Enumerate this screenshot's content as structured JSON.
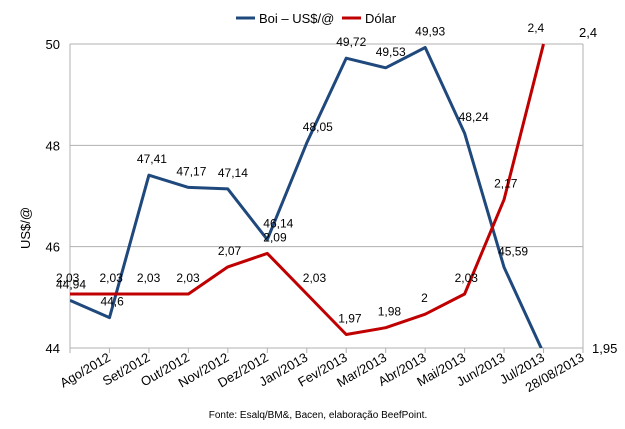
{
  "chart_data": {
    "type": "line",
    "title": "",
    "xlabel": "",
    "ylabel": "US$/@",
    "legend_position": "top",
    "grid": true,
    "categories": [
      "Ago/2012",
      "Set/2012",
      "Out/2012",
      "Nov/2012",
      "Dez/2012",
      "Jan/2013",
      "Fev/2013",
      "Mar/2013",
      "Abr/2013",
      "Mai/2013",
      "Jun/2013",
      "Jul/2013",
      "28/08/2013"
    ],
    "y_left": {
      "ticks": [
        "44",
        "46",
        "48",
        "50"
      ],
      "ylim": [
        44,
        50
      ]
    },
    "y_right": {
      "ticks": [
        "1,95",
        "2,4"
      ],
      "ylim": [
        1.95,
        2.4
      ]
    },
    "series": [
      {
        "name": "Boi – US$/@",
        "color": "#1f497d",
        "axis": "left",
        "values": [
          44.94,
          44.6,
          47.41,
          47.17,
          47.14,
          46.14,
          48.05,
          49.72,
          49.53,
          49.93,
          48.24,
          45.59,
          43.9
        ],
        "labels": [
          "44,94",
          "44,6",
          "47,41",
          "47,17",
          "47,14",
          "46,14",
          "48,05",
          "49,72",
          "49,53",
          "49,93",
          "48,24",
          "45,59",
          ""
        ]
      },
      {
        "name": "Dólar",
        "color": "#c00000",
        "axis": "right",
        "values": [
          2.03,
          2.03,
          2.03,
          2.03,
          2.07,
          2.09,
          2.03,
          1.97,
          1.98,
          2.0,
          2.03,
          2.17,
          2.4
        ],
        "labels": [
          "2,03",
          "2,03",
          "2,03",
          "2,03",
          "2,07",
          "2,09",
          "2,03",
          "1,97",
          "1,98",
          "2",
          "2,03",
          "2,17",
          "2,4"
        ]
      }
    ],
    "source": "Fonte: Esalq/BM&, Bacen, elaboração BeefPoint."
  }
}
